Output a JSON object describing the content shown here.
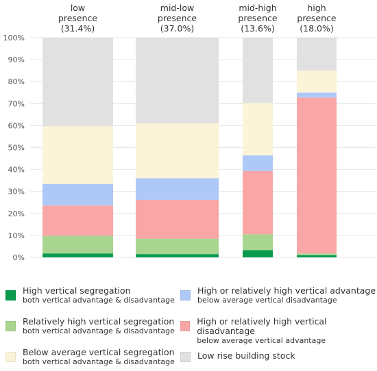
{
  "chart_data": {
    "type": "bar",
    "stacked": true,
    "categories": [
      "low\npresence\n(31.4%)",
      "mid-low\npresence\n(37.0%)",
      "mid-high\npresence\n(13.6%)",
      "high\npresence\n(18.0%)"
    ],
    "ylim": [
      0,
      100
    ],
    "yticks": [
      "0%",
      "10%",
      "20%",
      "30%",
      "40%",
      "50%",
      "60%",
      "70%",
      "80%",
      "90%",
      "100%"
    ],
    "grid": true,
    "legend_position": "bottom",
    "series": [
      {
        "name": "High vertical segregation",
        "subtitle": "both vertical advantage & disadvantage",
        "color": "#0a9a4e",
        "values": [
          1.8,
          1.5,
          3.3,
          1.0
        ]
      },
      {
        "name": "Relatively high vertical segregation",
        "subtitle": "both vertical advantage & disadvantage",
        "color": "#a8d58f",
        "values": [
          8.0,
          7.0,
          7.2,
          0.8
        ]
      },
      {
        "name": "High or relatively high vertical disadvantage",
        "subtitle": "below average vertical advantage",
        "color": "#f9a7a6",
        "values": [
          13.8,
          17.7,
          28.8,
          71.0
        ]
      },
      {
        "name": "High or relatively high vertical advantage",
        "subtitle": "below average vertical disadvantage",
        "color": "#aec8f7",
        "values": [
          9.8,
          9.8,
          7.1,
          2.2
        ]
      },
      {
        "name": "Below average vertical segregation",
        "subtitle": "both vertical advantage & disadvantage",
        "color": "#fbf4d8",
        "values": [
          26.3,
          25.0,
          23.8,
          10.0
        ]
      },
      {
        "name": "Low rise building stock",
        "subtitle": "",
        "color": "#e1e1e1",
        "values": [
          40.3,
          39.0,
          29.8,
          15.0
        ]
      }
    ]
  },
  "legend": {
    "items": [
      {
        "series": 0
      },
      {
        "series": 3
      },
      {
        "series": 1
      },
      {
        "series": 2
      },
      {
        "series": 4
      },
      {
        "series": 5
      }
    ]
  }
}
